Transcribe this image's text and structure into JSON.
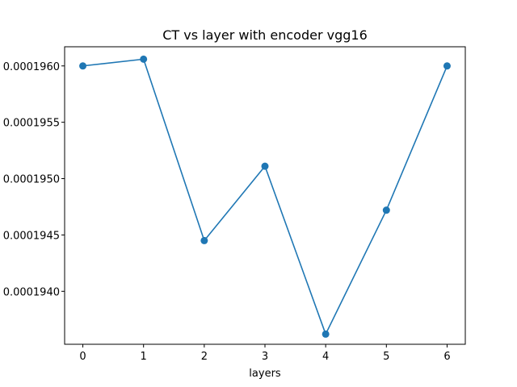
{
  "chart_data": {
    "type": "line",
    "title": "CT vs layer with encoder vgg16",
    "xlabel": "layers",
    "ylabel": "",
    "x": [
      0,
      1,
      2,
      3,
      4,
      5,
      6
    ],
    "series": [
      {
        "values": [
          0.000196,
          0.00019606,
          0.00019445,
          0.00019511,
          0.00019362,
          0.00019472,
          0.000196
        ]
      }
    ],
    "xlim": [
      -0.3,
      6.3
    ],
    "ylim": [
      0.00019353,
      0.00019617
    ],
    "xticks": [
      0,
      1,
      2,
      3,
      4,
      5,
      6
    ],
    "xtick_labels": [
      "0",
      "1",
      "2",
      "3",
      "4",
      "5",
      "6"
    ],
    "yticks": [
      0.000194,
      0.0001945,
      0.000195,
      0.0001955,
      0.000196
    ],
    "ytick_labels": [
      "0.0001940",
      "0.0001945",
      "0.0001950",
      "0.0001955",
      "0.0001960"
    ],
    "grid": false,
    "legend": "none",
    "colors": {
      "series": "#1f77b4"
    }
  }
}
